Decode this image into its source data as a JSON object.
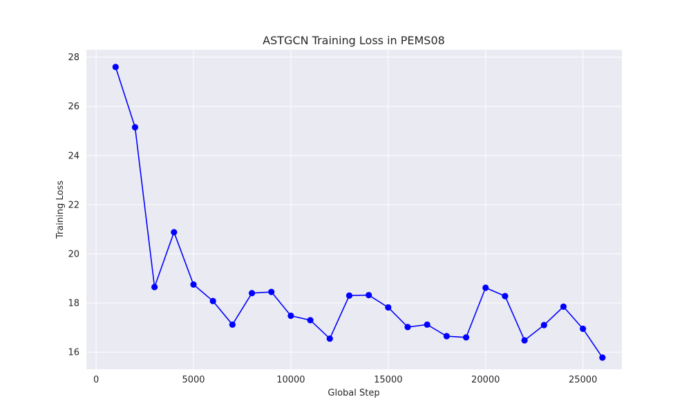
{
  "chart_data": {
    "type": "line",
    "title": "ASTGCN Training Loss in PEMS08",
    "xlabel": "Global Step",
    "ylabel": "Training Loss",
    "xlim": [
      -500,
      27000
    ],
    "ylim": [
      15.3,
      28.3
    ],
    "xticks": [
      0,
      5000,
      10000,
      15000,
      20000,
      25000
    ],
    "yticks": [
      16,
      18,
      20,
      22,
      24,
      26,
      28
    ],
    "grid": true,
    "background_color": "#eaeaf2",
    "grid_color": "#ffffff",
    "series": [
      {
        "color": "#0000ff",
        "marker": "circle",
        "x": [
          1000,
          2000,
          3000,
          4000,
          5000,
          6000,
          7000,
          8000,
          9000,
          10000,
          11000,
          12000,
          13000,
          14000,
          15000,
          16000,
          17000,
          18000,
          19000,
          20000,
          21000,
          22000,
          23000,
          24000,
          25000,
          26000
        ],
        "y": [
          27.6,
          25.15,
          18.65,
          20.88,
          18.75,
          18.08,
          17.12,
          18.4,
          18.45,
          17.48,
          17.3,
          16.55,
          18.3,
          18.32,
          17.82,
          17.02,
          17.12,
          16.65,
          16.6,
          18.62,
          18.28,
          16.48,
          17.1,
          17.85,
          16.95,
          15.78
        ]
      }
    ]
  }
}
